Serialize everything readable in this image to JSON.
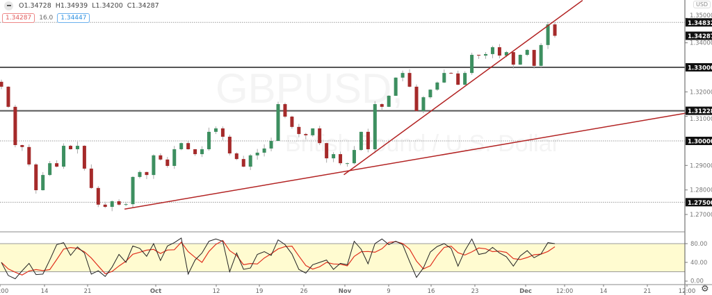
{
  "header": {
    "collapse_icon": "minus-icon",
    "open": "O1.34728",
    "high": "H1.34939",
    "low": "L1.34200",
    "close": "C1.34287",
    "sell_price": "1.34287",
    "spread": "16.0",
    "buy_price": "1.34447",
    "currency": "USD"
  },
  "watermark": {
    "symbol": "GBPUSD,",
    "description": "British Pound / U.S. Dollar"
  },
  "settings_icon": "gear-icon",
  "colors": {
    "up": "#3d8f60",
    "down": "#a52a2a",
    "trendline": "#b22222",
    "stoch_k": "#222222",
    "stoch_d": "#e0301e",
    "band": "#fffbd0"
  },
  "chart_data": [
    {
      "type": "candlestick",
      "symbol": "GBPUSD",
      "closes": [
        1.3221,
        1.3139,
        1.2983,
        1.2975,
        1.2904,
        1.2799,
        1.2861,
        1.2909,
        1.2895,
        1.298,
        1.2966,
        1.298,
        1.2887,
        1.2808,
        1.274,
        1.2731,
        1.2754,
        1.274,
        1.2742,
        1.2853,
        1.2873,
        1.2861,
        1.2941,
        1.2924,
        1.2898,
        1.2966,
        1.2991,
        1.2966,
        1.2946,
        1.2966,
        1.3037,
        1.3051,
        1.3017,
        1.2949,
        1.2926,
        1.2895,
        1.2941,
        1.2952,
        1.2969,
        1.3,
        1.315,
        1.3099,
        1.3057,
        1.3028,
        1.3023,
        1.3051,
        1.2991,
        1.2929,
        1.2946,
        1.2909,
        1.2909,
        1.2963,
        1.3037,
        1.2966,
        1.315,
        1.3139,
        1.3184,
        1.3258,
        1.3277,
        1.3221,
        1.3122,
        1.3178,
        1.3209,
        1.3238,
        1.3277,
        1.3275,
        1.3229,
        1.3277,
        1.3351,
        1.3348,
        1.3354,
        1.3382,
        1.3348,
        1.3362,
        1.3311,
        1.3351,
        1.3371,
        1.3306,
        1.3391,
        1.3475,
        1.34287
      ],
      "ylim": [
        1.265,
        1.354
      ],
      "y_ticks": [
        "1.35000",
        "1.34000",
        "1.32000",
        "1.31000",
        "1.29000",
        "1.28000",
        "1.27000"
      ],
      "y_tick_values": [
        1.35,
        1.34,
        1.32,
        1.31,
        1.29,
        1.28,
        1.27
      ],
      "horizontal_levels": [
        {
          "label": "1.34832",
          "value": 1.34832,
          "style": "dotted"
        },
        {
          "label": "1.34287",
          "value": 1.34287,
          "style": "none"
        },
        {
          "label": "1.33000",
          "value": 1.33,
          "style": "solid"
        },
        {
          "label": "1.31228",
          "value": 1.31228,
          "style": "solid"
        },
        {
          "label": "1.30000",
          "value": 1.3,
          "style": "dotted"
        },
        {
          "label": "1.27500",
          "value": 1.275,
          "style": "dotted"
        }
      ],
      "trendlines": [
        {
          "from_bar": 17.8,
          "from": 1.2722,
          "to_bar": 101,
          "to": 1.3123
        },
        {
          "from_bar": 49.5,
          "from": 1.2862,
          "to_bar": 84,
          "to": 1.3573
        }
      ]
    },
    {
      "type": "line",
      "indicator": "stochastic",
      "k": [
        40,
        12,
        5,
        22,
        38,
        14,
        15,
        45,
        78,
        82,
        55,
        73,
        60,
        15,
        22,
        10,
        30,
        57,
        40,
        75,
        70,
        53,
        80,
        44,
        75,
        82,
        92,
        15,
        45,
        60,
        85,
        90,
        85,
        20,
        60,
        25,
        28,
        57,
        63,
        55,
        88,
        78,
        58,
        25,
        17,
        35,
        40,
        45,
        25,
        38,
        35,
        85,
        68,
        37,
        80,
        90,
        78,
        85,
        78,
        42,
        8,
        28,
        62,
        74,
        80,
        70,
        32,
        65,
        90,
        57,
        60,
        72,
        60,
        52,
        32,
        54,
        65,
        50,
        58,
        82,
        80
      ],
      "ylim": [
        0,
        100
      ],
      "band": [
        20,
        80
      ],
      "y_ticks": [
        "80.00",
        "40.00",
        "0.00"
      ],
      "y_tick_values": [
        80,
        40,
        0
      ]
    }
  ],
  "x_axis": {
    "labels": [
      "00:00",
      "14",
      "21",
      "Oct",
      "12",
      "19",
      "26",
      "Nov",
      "9",
      "16",
      "23",
      "Dec",
      "12:00",
      "14",
      "21",
      "12:00"
    ]
  }
}
